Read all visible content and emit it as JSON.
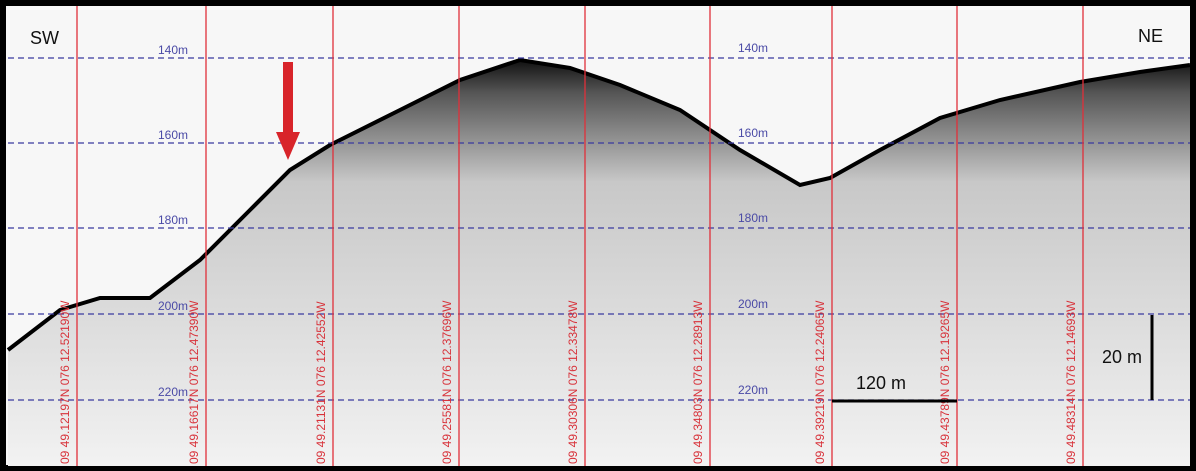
{
  "direction_labels": {
    "left": "SW",
    "right": "NE"
  },
  "depth_labels_left": [
    "140m",
    "160m",
    "180m",
    "200m",
    "220m"
  ],
  "depth_labels_center": [
    "140m",
    "160m",
    "180m",
    "200m",
    "220m"
  ],
  "track_labels": [
    "09 49.12197N 076 12.52190W",
    "09 49.16617N 076 12.47390W",
    "09 49.21131N 076 12.42552W",
    "09 49.25581N 076 12.37696W",
    "09 49.30306N 076 12.33478W",
    "09 49.34803N 076 12.28913W",
    "09 49.39219N 076 12.24065W",
    "09 49.43789N 076 12.19265W",
    "09 49.48314N 076 12.14693W"
  ],
  "scale_bars": {
    "horizontal": "120 m",
    "vertical": "20 m"
  }
}
